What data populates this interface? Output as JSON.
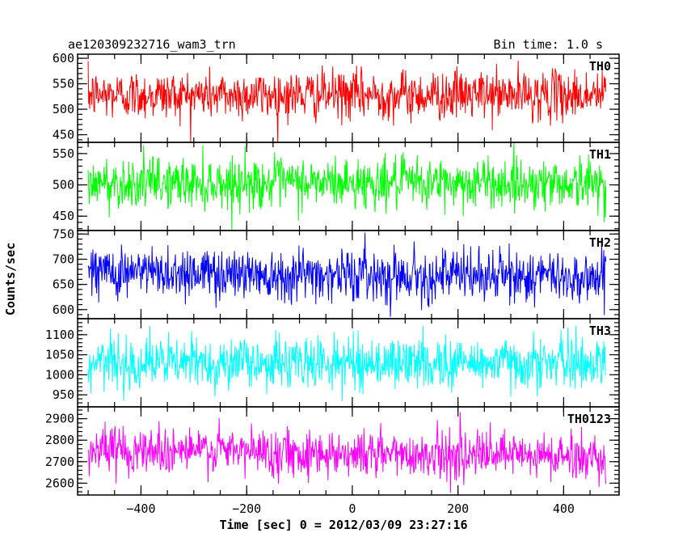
{
  "header": {
    "title": "ae120309232716_wam3_trn",
    "bin_time": "Bin time: 1.0 s"
  },
  "chart_data": {
    "type": "line",
    "xlabel": "Time [sec] 0 = 2012/03/09 23:27:16",
    "ylabel": "Counts/sec",
    "xlim": [
      -520,
      505
    ],
    "x_range_data": [
      -500,
      480
    ],
    "x_ticks": [
      -400,
      -200,
      0,
      200,
      400
    ],
    "x_tick_labels": [
      "−400",
      "−200",
      "0",
      "200",
      "400"
    ],
    "panels": [
      {
        "name": "TH0",
        "color": "#ff0000",
        "ylim": [
          435,
          608
        ],
        "y_ticks": [
          450,
          500,
          550,
          600
        ],
        "y_tick_labels": [
          "450",
          "500",
          "550",
          "600"
        ],
        "mean": 528,
        "noise": 24
      },
      {
        "name": "TH1",
        "color": "#00ff00",
        "ylim": [
          427,
          568
        ],
        "y_ticks": [
          450,
          500,
          550
        ],
        "y_tick_labels": [
          "450",
          "500",
          "550"
        ],
        "mean": 503,
        "noise": 20
      },
      {
        "name": "TH2",
        "color": "#0000ff",
        "ylim": [
          582,
          757
        ],
        "y_ticks": [
          600,
          650,
          700,
          750
        ],
        "y_tick_labels": [
          "600",
          "650",
          "700",
          "750"
        ],
        "mean": 670,
        "noise": 26,
        "trend": -12
      },
      {
        "name": "TH3",
        "color": "#00ffff",
        "ylim": [
          920,
          1140
        ],
        "y_ticks": [
          950,
          1000,
          1050,
          1100
        ],
        "y_tick_labels": [
          "950",
          "1000",
          "1050",
          "1100"
        ],
        "mean": 1030,
        "noise": 32
      },
      {
        "name": "TH0123",
        "color": "#ff00ff",
        "ylim": [
          2545,
          2955
        ],
        "y_ticks": [
          2600,
          2700,
          2800,
          2900
        ],
        "y_tick_labels": [
          "2600",
          "2700",
          "2800",
          "2900"
        ],
        "mean": 2740,
        "noise": 55,
        "trend": -40
      }
    ]
  }
}
